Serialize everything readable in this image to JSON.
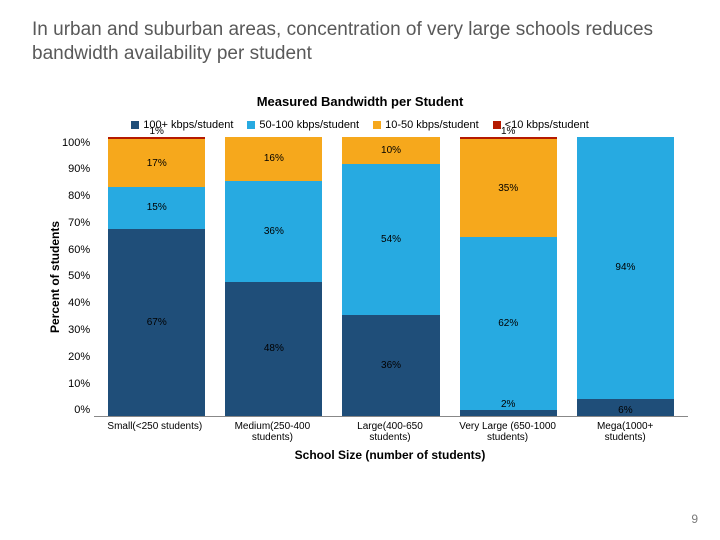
{
  "title": "In urban and suburban areas, concentration of very large schools reduces bandwidth availability per student",
  "chart": {
    "title": "Measured Bandwidth per Student",
    "ylabel": "Percent of students",
    "xlabel": "School Size (number of students)",
    "yticks": [
      "100%",
      "90%",
      "80%",
      "70%",
      "60%",
      "50%",
      "40%",
      "30%",
      "20%",
      "10%",
      "0%"
    ],
    "series": [
      {
        "label": "100+ kbps/student",
        "color": "#1f4e79"
      },
      {
        "label": "50-100 kbps/student",
        "color": "#27aae1"
      },
      {
        "label": "10-50 kbps/student",
        "color": "#f6a81c"
      },
      {
        "label": "<10 kbps/student",
        "color": "#b51a00"
      }
    ],
    "categories": [
      "Small(<250 students)",
      "Medium(250-400 students)",
      "Large(400-650 students)",
      "Very Large (650-1000 students)",
      "Mega(1000+ students)"
    ],
    "stacks": [
      [
        {
          "v": 67,
          "label": "67%"
        },
        {
          "v": 15,
          "label": "15%"
        },
        {
          "v": 17,
          "label": "17%"
        },
        {
          "v": 1,
          "label": "1%"
        }
      ],
      [
        {
          "v": 48,
          "label": "48%"
        },
        {
          "v": 36,
          "label": "36%"
        },
        {
          "v": 16,
          "label": "16%"
        },
        {
          "v": 0,
          "label": ""
        }
      ],
      [
        {
          "v": 36,
          "label": "36%"
        },
        {
          "v": 54,
          "label": "54%"
        },
        {
          "v": 10,
          "label": "10%"
        },
        {
          "v": 0,
          "label": ""
        }
      ],
      [
        {
          "v": 2,
          "label": "2%"
        },
        {
          "v": 62,
          "label": "62%"
        },
        {
          "v": 35,
          "label": "35%"
        },
        {
          "v": 1,
          "label": "1%"
        }
      ],
      [
        {
          "v": 6,
          "label": "6%"
        },
        {
          "v": 94,
          "label": "94%"
        },
        {
          "v": 0,
          "label": ""
        },
        {
          "v": 0,
          "label": ""
        }
      ]
    ]
  },
  "page_number": "9"
}
